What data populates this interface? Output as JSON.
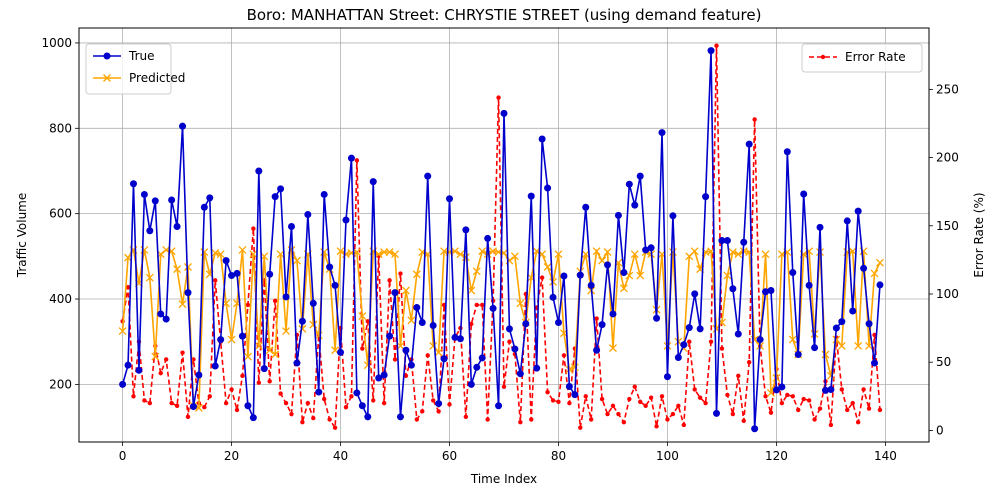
{
  "chart_data": {
    "type": "line",
    "title": "Boro: MANHATTAN Street: CHRYSTIE STREET (using demand feature)",
    "xlabel": "Time Index",
    "ylabel_left": "Traffic Volume",
    "ylabel_right": "Error Rate (%)",
    "xlim": [
      -8,
      148
    ],
    "ylim_left": [
      65,
      1035
    ],
    "ylim_right": [
      -8.5,
      295
    ],
    "x_ticks": [
      0,
      20,
      40,
      60,
      80,
      100,
      120,
      140
    ],
    "y_ticks_left": [
      200,
      400,
      600,
      800,
      1000
    ],
    "y_ticks_right": [
      0,
      50,
      100,
      150,
      200,
      250
    ],
    "grid": true,
    "legend_left_position": "upper-left",
    "legend_right_position": "upper-right",
    "colors": {
      "true": "#0000cc",
      "predicted": "#ffa500",
      "error": "#ff0000",
      "grid": "#b0b0b0"
    },
    "series": [
      {
        "name": "True",
        "axis": "left",
        "marker": "circle",
        "style": "solid",
        "values": [
          200,
          245,
          670,
          233,
          645,
          560,
          630,
          365,
          353,
          632,
          570,
          805,
          415,
          148,
          222,
          615,
          637,
          243,
          305,
          490,
          455,
          460,
          313,
          150,
          122,
          700,
          237,
          458,
          640,
          658,
          405,
          570,
          250,
          348,
          598,
          390,
          182,
          645,
          475,
          432,
          275,
          585,
          730,
          180,
          150,
          124,
          675,
          215,
          222,
          313,
          415,
          124,
          280,
          245,
          380,
          345,
          688,
          338,
          155,
          260,
          635,
          310,
          307,
          562,
          200,
          240,
          262,
          542,
          378,
          150,
          835,
          330,
          283,
          225,
          342,
          641,
          238,
          775,
          660,
          404,
          345,
          454,
          195,
          176,
          456,
          615,
          432,
          280,
          340,
          480,
          365,
          596,
          462,
          669,
          620,
          688,
          515,
          520,
          355,
          790,
          218,
          595,
          263,
          293,
          333,
          412,
          330,
          640,
          982,
          132,
          537,
          537,
          424,
          318,
          533,
          763,
          96,
          305,
          417,
          420,
          187,
          194,
          745,
          462,
          270,
          646,
          432,
          286,
          568,
          186,
          188,
          332,
          347,
          583,
          372,
          606,
          472,
          342,
          250,
          433
        ]
      },
      {
        "name": "Predicted",
        "axis": "left",
        "marker": "x",
        "style": "solid",
        "values": [
          325,
          497,
          515,
          437,
          515,
          450,
          265,
          505,
          515,
          512,
          470,
          388,
          475,
          150,
          145,
          510,
          458,
          508,
          505,
          390,
          305,
          390,
          515,
          265,
          505,
          290,
          500,
          280,
          270,
          505,
          325,
          515,
          490,
          330,
          505,
          340,
          315,
          510,
          470,
          280,
          512,
          505,
          508,
          510,
          360,
          245,
          512,
          505,
          510,
          510,
          505,
          290,
          420,
          350,
          458,
          510,
          505,
          290,
          275,
          512,
          510,
          512,
          505,
          498,
          420,
          465,
          512,
          505,
          512,
          510,
          508,
          490,
          500,
          390,
          345,
          450,
          512,
          505,
          475,
          440,
          505,
          320,
          235,
          240,
          465,
          505,
          420,
          512,
          490,
          510,
          285,
          485,
          425,
          455,
          505,
          455,
          510,
          505,
          375,
          505,
          290,
          510,
          300,
          285,
          500,
          512,
          470,
          510,
          512,
          330,
          345,
          455,
          510,
          505,
          512,
          510,
          305,
          290,
          505,
          180,
          215,
          505,
          510,
          305,
          270,
          505,
          512,
          318,
          510,
          270,
          220,
          305,
          290,
          510,
          512,
          290,
          512,
          290,
          460,
          485
        ]
      },
      {
        "name": "Error Rate",
        "axis": "right",
        "marker": "circle",
        "style": "dashed",
        "values": [
          80,
          105,
          25,
          65,
          22,
          20,
          62,
          42,
          52,
          20,
          18,
          57,
          10,
          52,
          20,
          17,
          25,
          110,
          65,
          20,
          30,
          15,
          40,
          92,
          148,
          35,
          110,
          36,
          95,
          27,
          20,
          12,
          70,
          6,
          20,
          9,
          70,
          23,
          8,
          2,
          75,
          17,
          25,
          198,
          60,
          80,
          22,
          128,
          20,
          110,
          52,
          115,
          40,
          52,
          8,
          14,
          55,
          22,
          14,
          92,
          19,
          68,
          75,
          10,
          78,
          92,
          92,
          8,
          95,
          244,
          32,
          65,
          56,
          6,
          100,
          8,
          90,
          112,
          28,
          22,
          21,
          55,
          20,
          60,
          2,
          25,
          8,
          82,
          23,
          12,
          18,
          12,
          6,
          23,
          32,
          21,
          18,
          24,
          3,
          25,
          8,
          12,
          18,
          4,
          65,
          30,
          24,
          20,
          65,
          282,
          60,
          26,
          12,
          40,
          7,
          50,
          228,
          62,
          25,
          13,
          45,
          20,
          26,
          25,
          15,
          23,
          22,
          8,
          16,
          36,
          4,
          68,
          30,
          15,
          20,
          6,
          30,
          16,
          70,
          15
        ]
      }
    ]
  }
}
